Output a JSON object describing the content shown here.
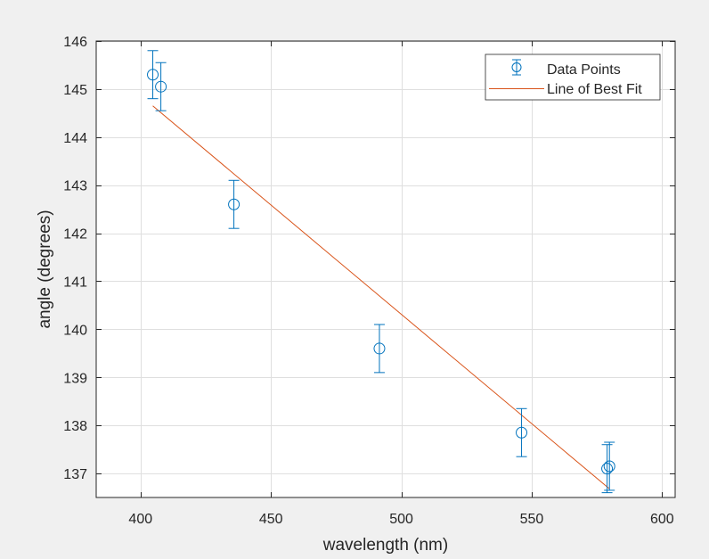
{
  "chart_data": {
    "type": "scatter",
    "title": "",
    "xlabel": "wavelength (nm)",
    "ylabel": "angle (degrees)",
    "xlim": [
      383,
      605
    ],
    "ylim": [
      136.5,
      146
    ],
    "xticks": [
      400,
      450,
      500,
      550,
      600
    ],
    "yticks": [
      137,
      138,
      139,
      140,
      141,
      142,
      143,
      144,
      145,
      146
    ],
    "grid": true,
    "legend_position": "top-right",
    "colors": {
      "data": "#0072bd",
      "fit": "#d95319",
      "axes_bg": "#ffffff",
      "figure_bg": "#f0f0f0",
      "grid": "#dfdfdf"
    },
    "series": [
      {
        "name": "Data Points",
        "type": "errorbar",
        "marker": "circle",
        "x": [
          404.7,
          407.8,
          435.8,
          491.6,
          546.1,
          578.9,
          579.8
        ],
        "y": [
          145.3,
          145.05,
          142.6,
          139.6,
          137.85,
          137.1,
          137.15
        ],
        "yerr": [
          0.5,
          0.5,
          0.5,
          0.5,
          0.5,
          0.5,
          0.5
        ]
      },
      {
        "name": "Line of Best Fit",
        "type": "line",
        "x": [
          404.7,
          579.8
        ],
        "y": [
          144.65,
          136.68
        ]
      }
    ]
  }
}
